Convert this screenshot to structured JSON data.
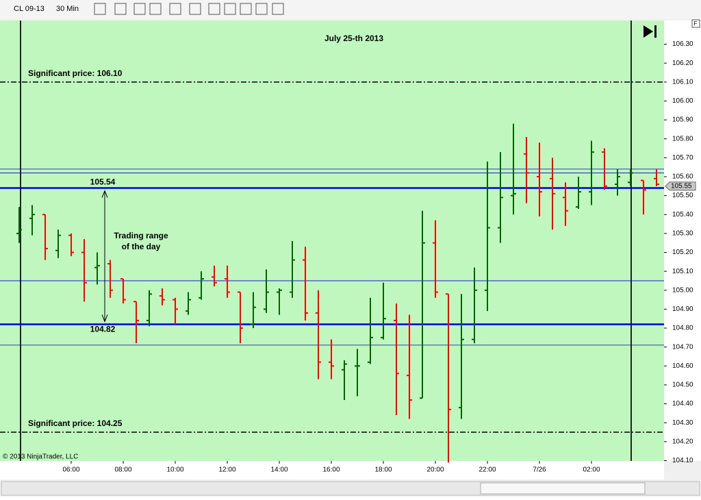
{
  "toolbar": {
    "instrument": "CL 09-13",
    "period": "30 Min"
  },
  "chart_data": {
    "type": "ohlc",
    "title": "July 25-th 2013",
    "copyright": "© 2013 NinjaTrader, LLC",
    "axis_button": "F",
    "categories": [
      null,
      null,
      null,
      null,
      "06:00",
      null,
      null,
      null,
      "08:00",
      null,
      null,
      null,
      "10:00",
      null,
      null,
      null,
      "12:00",
      null,
      null,
      null,
      "14:00",
      null,
      null,
      null,
      "16:00",
      null,
      null,
      null,
      "18:00",
      null,
      null,
      null,
      "20:00",
      null,
      null,
      null,
      "22:00",
      null,
      null,
      null,
      "7/26",
      null,
      null,
      null,
      "02:00",
      null,
      null,
      null,
      null,
      null
    ],
    "open": [
      105.3,
      105.38,
      105.4,
      105.21,
      105.29,
      105.2,
      105.12,
      105.14,
      105.06,
      104.94,
      104.84,
      104.97,
      104.95,
      104.89,
      104.96,
      105.07,
      105.06,
      104.99,
      104.82,
      104.9,
      104.99,
      104.99,
      105.16,
      104.88,
      104.62,
      104.58,
      104.6,
      104.62,
      104.75,
      104.84,
      104.55,
      104.43,
      105.25,
      104.98,
      104.38,
      104.74,
      105.0,
      105.33,
      105.5,
      105.72,
      105.6,
      105.59,
      105.49,
      105.44,
      105.52,
      105.73,
      105.56,
      105.57,
      105.58,
      105.59
    ],
    "high": [
      105.44,
      105.45,
      105.4,
      105.32,
      105.3,
      105.27,
      105.2,
      105.16,
      105.06,
      104.94,
      105.0,
      105.01,
      104.96,
      104.99,
      105.1,
      105.13,
      105.13,
      104.99,
      104.99,
      105.11,
      105.01,
      105.26,
      105.23,
      105.0,
      104.74,
      104.63,
      104.69,
      104.96,
      105.04,
      104.93,
      104.87,
      105.42,
      105.37,
      104.98,
      104.98,
      105.12,
      105.68,
      105.73,
      105.88,
      105.81,
      105.78,
      105.7,
      105.57,
      105.6,
      105.79,
      105.75,
      105.64,
      105.64,
      105.58,
      105.64
    ],
    "low": [
      105.25,
      105.29,
      105.16,
      105.17,
      105.18,
      104.94,
      105.03,
      104.96,
      104.93,
      104.72,
      104.81,
      104.92,
      104.82,
      104.87,
      104.95,
      105.02,
      104.96,
      104.72,
      104.8,
      104.88,
      104.87,
      104.96,
      104.84,
      104.53,
      104.53,
      104.42,
      104.44,
      104.61,
      104.74,
      104.34,
      104.32,
      104.43,
      104.96,
      104.09,
      104.32,
      104.72,
      104.89,
      105.25,
      105.4,
      105.46,
      105.39,
      105.32,
      105.34,
      105.43,
      105.45,
      105.53,
      105.5,
      105.55,
      105.4,
      105.55
    ],
    "close": [
      105.32,
      105.4,
      105.22,
      105.29,
      105.2,
      105.04,
      105.13,
      105.0,
      104.95,
      104.84,
      104.98,
      104.95,
      104.9,
      104.95,
      105.06,
      105.04,
      104.99,
      104.8,
      104.91,
      104.99,
      105.0,
      105.16,
      104.88,
      104.62,
      104.6,
      104.61,
      104.6,
      104.75,
      104.85,
      104.56,
      104.42,
      105.25,
      104.99,
      104.37,
      104.74,
      105.0,
      105.33,
      105.49,
      105.51,
      105.62,
      105.52,
      105.51,
      105.42,
      105.52,
      105.73,
      105.55,
      105.6,
      105.62,
      105.53,
      105.56
    ],
    "up_color": "#006400",
    "down_color": "#ff0000",
    "ylim": [
      104.098,
      106.425
    ],
    "yticks": [
      {
        "value": 104.1,
        "label": "104.10"
      },
      {
        "value": 104.2,
        "label": "104.20"
      },
      {
        "value": 104.3,
        "label": "104.30"
      },
      {
        "value": 104.4,
        "label": "104.40"
      },
      {
        "value": 104.5,
        "label": "104.50"
      },
      {
        "value": 104.6,
        "label": "104.60"
      },
      {
        "value": 104.7,
        "label": "104.70"
      },
      {
        "value": 104.8,
        "label": "104.80"
      },
      {
        "value": 104.9,
        "label": "104.90"
      },
      {
        "value": 105.0,
        "label": "105.00"
      },
      {
        "value": 105.1,
        "label": "105.10"
      },
      {
        "value": 105.2,
        "label": "105.20"
      },
      {
        "value": 105.3,
        "label": "105.30"
      },
      {
        "value": 105.4,
        "label": "105.40"
      },
      {
        "value": 105.5,
        "label": "105.50"
      },
      {
        "value": 105.6,
        "label": "105.60"
      },
      {
        "value": 105.7,
        "label": "105.70"
      },
      {
        "value": 105.8,
        "label": "105.80"
      },
      {
        "value": 105.9,
        "label": "105.90"
      },
      {
        "value": 106.0,
        "label": "106.00"
      },
      {
        "value": 106.1,
        "label": "106.10"
      },
      {
        "value": 106.2,
        "label": "106.20"
      },
      {
        "value": 106.3,
        "label": "106.30"
      }
    ],
    "significant_prices": [
      {
        "text": "Significant price: 106.10",
        "value": 106.1
      },
      {
        "text": "Significant price: 104.25",
        "value": 104.25
      }
    ],
    "range": {
      "high": 105.54,
      "low": 104.82,
      "text": [
        "Trading range",
        "of the day"
      ]
    },
    "thin_levels": [
      105.64,
      105.62,
      105.05,
      104.71
    ],
    "last_price": 105.55
  }
}
